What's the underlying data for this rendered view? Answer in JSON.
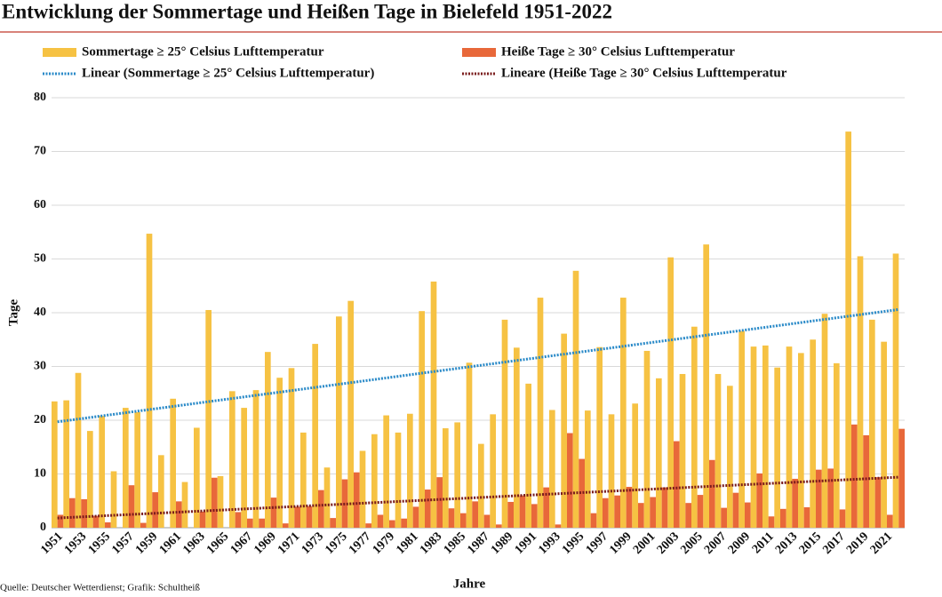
{
  "chart_data": {
    "type": "bar",
    "title": "Entwicklung der Sommertage und Heißen Tage in Bielefeld 1951-2022",
    "source": "Quelle: Deutscher Wetterdienst; Grafik: Schultheiß",
    "y_label": "Tage",
    "x_label": "Jahre",
    "categories": [
      "1951",
      null,
      "1953",
      null,
      "1955",
      null,
      "1957",
      null,
      "1959",
      null,
      "1961",
      null,
      "1963",
      null,
      "1965",
      null,
      "1967",
      null,
      "1969",
      null,
      "1971",
      null,
      "1973",
      null,
      "1975",
      null,
      "1977",
      null,
      "1979",
      null,
      "1981",
      null,
      "1983",
      null,
      "1985",
      null,
      "1987",
      null,
      "1989",
      null,
      "1991",
      null,
      "1993",
      null,
      "1995",
      null,
      "1997",
      null,
      "1999",
      null,
      "2001",
      null,
      "2003",
      null,
      "2005",
      null,
      "2007",
      null,
      "2009",
      null,
      "2011",
      null,
      "2013",
      null,
      "2015",
      null,
      "2017",
      null,
      "2019",
      null,
      "2021",
      null
    ],
    "series": [
      {
        "name": "Sommertage ≥ 25° Celsius Lufttemperatur",
        "color": "#f6c243",
        "values": [
          23.5,
          23.7,
          28.8,
          18.0,
          20.8,
          10.5,
          22.3,
          21.5,
          54.7,
          13.5,
          24.0,
          8.5,
          18.6,
          40.5,
          9.6,
          25.4,
          22.3,
          25.6,
          32.7,
          27.9,
          29.7,
          17.7,
          34.2,
          11.2,
          39.3,
          42.2,
          14.3,
          17.4,
          20.9,
          17.7,
          21.2,
          40.3,
          45.8,
          18.5,
          19.6,
          30.7,
          15.6,
          21.1,
          38.7,
          33.5,
          26.8,
          42.8,
          21.9,
          36.1,
          47.8,
          21.8,
          33.6,
          21.1,
          42.8,
          23.1,
          32.9,
          27.8,
          50.3,
          28.6,
          37.4,
          52.7,
          28.6,
          26.4,
          36.6,
          33.7,
          33.9,
          29.8,
          33.7,
          32.5,
          35.0,
          39.8,
          30.6,
          73.7,
          50.5,
          38.7,
          34.6,
          51.0
        ]
      },
      {
        "name": "Heiße Tage ≥ 30° Celsius Lufttemperatur",
        "color": "#e8683a",
        "values": [
          2.4,
          5.5,
          5.3,
          2.2,
          1.0,
          0,
          7.9,
          0.9,
          6.6,
          0,
          4.9,
          0,
          3.0,
          9.3,
          0,
          2.9,
          1.7,
          1.7,
          5.6,
          0.8,
          3.9,
          4.0,
          7.0,
          1.8,
          9.0,
          10.3,
          0.8,
          2.4,
          1.4,
          1.7,
          3.9,
          7.1,
          9.4,
          3.6,
          2.7,
          4.9,
          2.4,
          0.6,
          4.8,
          6.0,
          4.4,
          7.5,
          0.6,
          17.6,
          12.8,
          2.7,
          5.5,
          6.0,
          7.6,
          4.6,
          5.7,
          7.5,
          16.1,
          4.6,
          6.1,
          12.6,
          3.7,
          6.5,
          4.7,
          10.1,
          2.1,
          3.5,
          9.1,
          3.8,
          10.8,
          11.0,
          3.4,
          19.2,
          17.2,
          9.4,
          2.4,
          18.4
        ]
      }
    ],
    "trendlines": [
      {
        "name": "Linear (Sommertage ≥ 25° Celsius Lufttemperatur)",
        "color": "#2a8ac8",
        "values": [
          19.7,
          40.6
        ]
      },
      {
        "name": "Lineare (Heiße Tage ≥ 30° Celsius Lufttemperatur",
        "color": "#7a1c1c",
        "values": [
          1.8,
          9.4
        ]
      }
    ],
    "ylim": [
      0,
      80
    ],
    "yticks": [
      0,
      10,
      20,
      30,
      40,
      50,
      60,
      70,
      80
    ],
    "grid": true
  }
}
